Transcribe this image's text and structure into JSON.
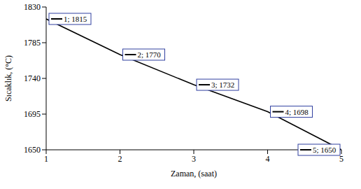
{
  "chart_data": {
    "type": "line",
    "x_label": "Zaman, (saat)",
    "y_label": "Sıcaklık, (°C)",
    "x": [
      1,
      2,
      3,
      4,
      5
    ],
    "values": [
      1815,
      1770,
      1732,
      1698,
      1650
    ],
    "value_labels": [
      "1; 1815",
      "2; 1770",
      "3; 1732",
      "4; 1698",
      "5; 1650"
    ],
    "data_labels": true,
    "color": "#000000",
    "xlim": [
      1,
      5
    ],
    "xticks": [
      1,
      2,
      3,
      4,
      5
    ],
    "ylim": [
      1650,
      1830
    ],
    "yticks": [
      1650,
      1695,
      1740,
      1785,
      1830
    ],
    "grid": false
  }
}
